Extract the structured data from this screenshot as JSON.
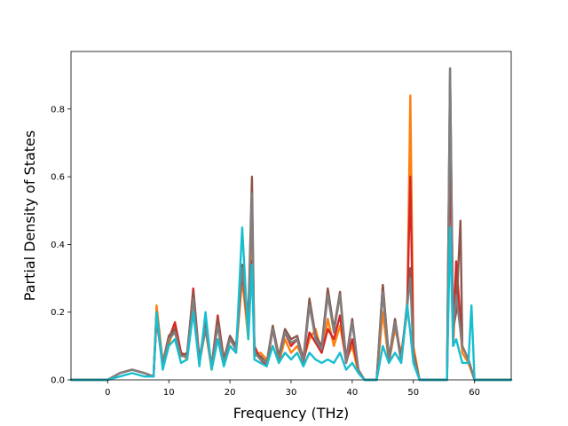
{
  "chart_data": {
    "type": "line",
    "title": "",
    "xlabel": "Frequency (THz)",
    "ylabel": "Partial Density of States",
    "xlim": [
      -6.0,
      66.0
    ],
    "ylim": [
      0.0,
      0.97
    ],
    "xticks": [
      0,
      10,
      20,
      30,
      40,
      50,
      60
    ],
    "xtick_labels": [
      "0",
      "10",
      "20",
      "30",
      "40",
      "50",
      "60"
    ],
    "yticks": [
      0.0,
      0.2,
      0.4,
      0.6,
      0.8
    ],
    "ytick_labels": [
      "0.0",
      "0.2",
      "0.4",
      "0.6",
      "0.8"
    ],
    "grid": false,
    "legend": "none",
    "series": [
      {
        "color": "#ff7f0e",
        "x": [
          -6,
          0,
          2,
          4,
          6,
          7.5,
          8,
          9,
          11,
          12,
          13,
          14,
          15,
          16,
          17,
          18,
          19,
          20,
          21,
          22,
          23,
          23.6,
          24,
          25,
          26,
          27,
          28,
          29,
          30,
          31,
          32,
          33,
          34,
          35,
          36,
          37,
          38,
          39,
          40,
          41,
          42,
          44,
          45,
          46,
          47,
          48,
          49,
          49.5,
          50,
          51,
          53,
          55.5,
          56,
          56.5,
          57,
          58,
          59,
          60,
          66
        ],
        "y": [
          0,
          0,
          0.02,
          0.03,
          0.02,
          0.01,
          0.22,
          0.05,
          0.16,
          0.08,
          0.06,
          0.25,
          0.05,
          0.15,
          0.03,
          0.12,
          0.05,
          0.1,
          0.08,
          0.3,
          0.12,
          0.45,
          0.07,
          0.08,
          0.06,
          0.1,
          0.05,
          0.12,
          0.08,
          0.1,
          0.06,
          0.12,
          0.15,
          0.08,
          0.18,
          0.1,
          0.16,
          0.06,
          0.1,
          0.02,
          0,
          0,
          0.2,
          0.05,
          0.15,
          0.08,
          0.2,
          0.84,
          0.1,
          0,
          0,
          0,
          0.78,
          0.1,
          0.3,
          0.08,
          0.05,
          0,
          0
        ]
      },
      {
        "color": "#d62728",
        "x": [
          -6,
          0,
          2,
          4,
          6,
          7.5,
          8,
          9,
          10,
          11,
          12,
          13,
          14,
          15,
          16,
          17,
          18,
          19,
          20,
          21,
          22,
          23,
          23.6,
          24,
          25,
          26,
          27,
          28,
          29,
          30,
          31,
          32,
          33,
          34,
          35,
          36,
          37,
          38,
          39,
          40,
          41,
          42,
          44,
          45,
          46,
          47,
          48,
          49,
          49.5,
          50,
          51,
          53,
          55.5,
          56,
          56.5,
          57,
          58,
          59,
          60,
          66
        ],
        "y": [
          0,
          0,
          0.02,
          0.03,
          0.02,
          0.01,
          0.18,
          0.04,
          0.12,
          0.17,
          0.08,
          0.07,
          0.27,
          0.06,
          0.17,
          0.04,
          0.19,
          0.06,
          0.12,
          0.09,
          0.32,
          0.15,
          0.35,
          0.1,
          0.06,
          0.04,
          0.15,
          0.06,
          0.14,
          0.1,
          0.12,
          0.05,
          0.14,
          0.11,
          0.08,
          0.15,
          0.12,
          0.19,
          0.05,
          0.12,
          0.03,
          0,
          0,
          0.28,
          0.06,
          0.17,
          0.06,
          0.22,
          0.6,
          0.08,
          0,
          0,
          0,
          0.7,
          0.12,
          0.35,
          0.1,
          0.06,
          0,
          0
        ]
      },
      {
        "color": "#8c564b",
        "x": [
          -6,
          0,
          2,
          4,
          6,
          7.5,
          8,
          9,
          10,
          11,
          12,
          13,
          14,
          15,
          16,
          17,
          18,
          19,
          20,
          21,
          22,
          23,
          23.6,
          24,
          25,
          26,
          27,
          28,
          29,
          30,
          31,
          32,
          33,
          34,
          35,
          36,
          37,
          38,
          39,
          40,
          41,
          42,
          44,
          45,
          46,
          47,
          48,
          49,
          49.5,
          50,
          51,
          53,
          55.5,
          56,
          56.5,
          57,
          57.7,
          58,
          59,
          60,
          66
        ],
        "y": [
          0,
          0,
          0.02,
          0.03,
          0.02,
          0.01,
          0.2,
          0.05,
          0.13,
          0.15,
          0.07,
          0.08,
          0.26,
          0.05,
          0.16,
          0.04,
          0.18,
          0.06,
          0.13,
          0.1,
          0.34,
          0.18,
          0.6,
          0.08,
          0.07,
          0.05,
          0.16,
          0.07,
          0.15,
          0.12,
          0.13,
          0.06,
          0.24,
          0.13,
          0.1,
          0.27,
          0.15,
          0.26,
          0.06,
          0.18,
          0.03,
          0,
          0,
          0.28,
          0.06,
          0.18,
          0.06,
          0.23,
          0.33,
          0.08,
          0,
          0,
          0,
          0.92,
          0.15,
          0.2,
          0.47,
          0.1,
          0.06,
          0,
          0
        ]
      },
      {
        "color": "#7f7f7f",
        "x": [
          -6,
          0,
          2,
          4,
          6,
          7.5,
          8,
          9,
          10,
          11,
          12,
          13,
          14,
          15,
          16,
          17,
          18,
          19,
          20,
          21,
          22,
          23,
          23.6,
          24,
          25,
          26,
          27,
          28,
          29,
          30,
          31,
          32,
          33,
          34,
          35,
          36,
          37,
          38,
          39,
          40,
          41,
          42,
          44,
          45,
          46,
          47,
          48,
          49,
          49.5,
          50,
          51,
          53,
          55.5,
          56,
          56.5,
          57,
          58,
          59,
          60,
          66
        ],
        "y": [
          0,
          0,
          0.02,
          0.03,
          0.02,
          0.01,
          0.19,
          0.05,
          0.12,
          0.14,
          0.07,
          0.07,
          0.24,
          0.05,
          0.15,
          0.04,
          0.16,
          0.05,
          0.12,
          0.09,
          0.33,
          0.16,
          0.55,
          0.08,
          0.06,
          0.05,
          0.15,
          0.06,
          0.14,
          0.11,
          0.12,
          0.05,
          0.22,
          0.12,
          0.09,
          0.25,
          0.14,
          0.25,
          0.05,
          0.17,
          0.03,
          0,
          0,
          0.26,
          0.05,
          0.17,
          0.05,
          0.22,
          0.3,
          0.07,
          0,
          0,
          0,
          0.92,
          0.14,
          0.25,
          0.1,
          0.06,
          0,
          0
        ]
      },
      {
        "color": "#17becf",
        "x": [
          -6,
          0,
          2,
          4,
          6,
          7.5,
          8,
          9,
          10,
          11,
          12,
          13,
          14,
          15,
          16,
          17,
          18,
          19,
          20,
          21,
          22,
          23,
          23.6,
          24,
          25,
          26,
          27,
          28,
          29,
          30,
          31,
          32,
          33,
          34,
          35,
          36,
          37,
          38,
          39,
          40,
          41,
          42,
          44,
          45,
          46,
          47,
          48,
          49,
          49.5,
          50,
          51,
          53,
          55.5,
          56,
          56.5,
          57,
          58,
          59,
          59.5,
          60,
          66
        ],
        "y": [
          0,
          0,
          0.01,
          0.02,
          0.01,
          0.01,
          0.2,
          0.03,
          0.1,
          0.12,
          0.05,
          0.06,
          0.2,
          0.04,
          0.2,
          0.03,
          0.12,
          0.04,
          0.1,
          0.08,
          0.45,
          0.12,
          0.34,
          0.06,
          0.05,
          0.04,
          0.1,
          0.05,
          0.08,
          0.06,
          0.08,
          0.04,
          0.08,
          0.06,
          0.05,
          0.06,
          0.05,
          0.08,
          0.03,
          0.05,
          0.02,
          0,
          0,
          0.1,
          0.05,
          0.08,
          0.05,
          0.22,
          0.14,
          0.05,
          0,
          0,
          0,
          0.45,
          0.1,
          0.12,
          0.05,
          0.05,
          0.22,
          0,
          0
        ]
      }
    ]
  }
}
